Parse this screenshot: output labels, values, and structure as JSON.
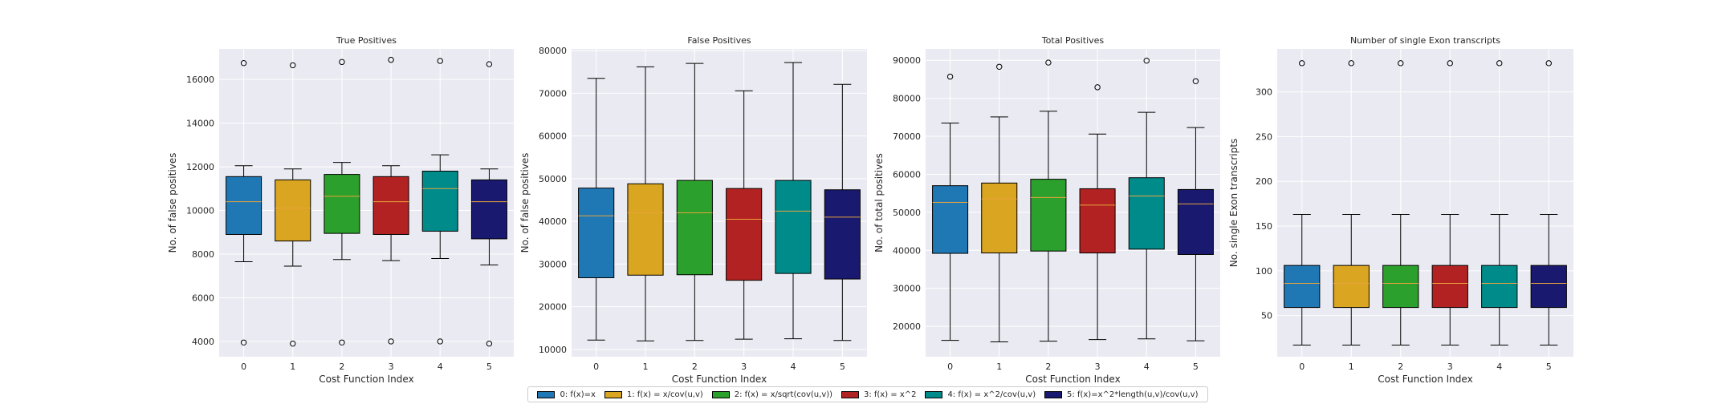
{
  "chart_data": [
    {
      "type": "box",
      "title": "True Positives",
      "xlabel": "Cost Function Index",
      "ylabel": "No. of false positives",
      "categories": [
        "0",
        "1",
        "2",
        "3",
        "4",
        "5"
      ],
      "ylim": [
        3300,
        17400
      ],
      "yticks": [
        4000,
        6000,
        8000,
        10000,
        12000,
        14000,
        16000
      ],
      "boxes": [
        {
          "whislo": 7650,
          "q1": 8900,
          "med": 10400,
          "q3": 11550,
          "whishi": 12050,
          "fliers": [
            3950,
            16750
          ]
        },
        {
          "whislo": 7450,
          "q1": 8600,
          "med": 10100,
          "q3": 11400,
          "whishi": 11900,
          "fliers": [
            3900,
            16650
          ]
        },
        {
          "whislo": 7750,
          "q1": 8950,
          "med": 10650,
          "q3": 11650,
          "whishi": 12200,
          "fliers": [
            3950,
            16800
          ]
        },
        {
          "whislo": 7700,
          "q1": 8900,
          "med": 10400,
          "q3": 11550,
          "whishi": 12050,
          "fliers": [
            4000,
            16900
          ]
        },
        {
          "whislo": 7800,
          "q1": 9050,
          "med": 11000,
          "q3": 11800,
          "whishi": 12550,
          "fliers": [
            4000,
            16850
          ]
        },
        {
          "whislo": 7500,
          "q1": 8700,
          "med": 10400,
          "q3": 11400,
          "whishi": 11900,
          "fliers": [
            3900,
            16700
          ]
        }
      ]
    },
    {
      "type": "box",
      "title": "False Positives",
      "xlabel": "Cost Function Index",
      "ylabel": "No. of false positives",
      "categories": [
        "0",
        "1",
        "2",
        "3",
        "4",
        "5"
      ],
      "ylim": [
        8300,
        80400
      ],
      "yticks": [
        10000,
        20000,
        30000,
        40000,
        50000,
        60000,
        70000,
        80000
      ],
      "boxes": [
        {
          "whislo": 12200,
          "q1": 26800,
          "med": 41300,
          "q3": 47800,
          "whishi": 73500,
          "fliers": []
        },
        {
          "whislo": 12000,
          "q1": 27400,
          "med": 42000,
          "q3": 48800,
          "whishi": 76200,
          "fliers": []
        },
        {
          "whislo": 12100,
          "q1": 27500,
          "med": 42000,
          "q3": 49600,
          "whishi": 77000,
          "fliers": []
        },
        {
          "whislo": 12400,
          "q1": 26200,
          "med": 40500,
          "q3": 47700,
          "whishi": 70600,
          "fliers": []
        },
        {
          "whislo": 12500,
          "q1": 27800,
          "med": 42400,
          "q3": 49600,
          "whishi": 77200,
          "fliers": []
        },
        {
          "whislo": 12100,
          "q1": 26500,
          "med": 41000,
          "q3": 47400,
          "whishi": 72100,
          "fliers": []
        }
      ]
    },
    {
      "type": "box",
      "title": "Total Positives",
      "xlabel": "Cost Function Index",
      "ylabel": "No. of total positives",
      "categories": [
        "0",
        "1",
        "2",
        "3",
        "4",
        "5"
      ],
      "ylim": [
        12000,
        93000
      ],
      "yticks": [
        20000,
        30000,
        40000,
        50000,
        60000,
        70000,
        80000,
        90000
      ],
      "boxes": [
        {
          "whislo": 16300,
          "q1": 39200,
          "med": 52600,
          "q3": 57000,
          "whishi": 73500,
          "fliers": [
            85700
          ]
        },
        {
          "whislo": 15900,
          "q1": 39300,
          "med": 53500,
          "q3": 57700,
          "whishi": 75100,
          "fliers": [
            88300
          ]
        },
        {
          "whislo": 16100,
          "q1": 39800,
          "med": 53900,
          "q3": 58700,
          "whishi": 76600,
          "fliers": [
            89400
          ]
        },
        {
          "whislo": 16500,
          "q1": 39300,
          "med": 51900,
          "q3": 56200,
          "whishi": 70600,
          "fliers": [
            82900
          ]
        },
        {
          "whislo": 16700,
          "q1": 40300,
          "med": 54300,
          "q3": 59100,
          "whishi": 76300,
          "fliers": [
            89900
          ]
        },
        {
          "whislo": 16200,
          "q1": 38900,
          "med": 52200,
          "q3": 56000,
          "whishi": 72300,
          "fliers": [
            84500
          ]
        }
      ]
    },
    {
      "type": "box",
      "title": "Number of single Exon transcripts",
      "xlabel": "Cost Function Index",
      "ylabel": "No. single Exon transcripts",
      "categories": [
        "0",
        "1",
        "2",
        "3",
        "4",
        "5"
      ],
      "ylim": [
        4,
        348
      ],
      "yticks": [
        50,
        100,
        150,
        200,
        250,
        300
      ],
      "boxes": [
        {
          "whislo": 17,
          "q1": 59,
          "med": 86,
          "q3": 106,
          "whishi": 163,
          "fliers": [
            332
          ]
        },
        {
          "whislo": 17,
          "q1": 59,
          "med": 86,
          "q3": 106,
          "whishi": 163,
          "fliers": [
            332
          ]
        },
        {
          "whislo": 17,
          "q1": 59,
          "med": 86,
          "q3": 106,
          "whishi": 163,
          "fliers": [
            332
          ]
        },
        {
          "whislo": 17,
          "q1": 59,
          "med": 86,
          "q3": 106,
          "whishi": 163,
          "fliers": [
            332
          ]
        },
        {
          "whislo": 17,
          "q1": 59,
          "med": 86,
          "q3": 106,
          "whishi": 163,
          "fliers": [
            332
          ]
        },
        {
          "whislo": 17,
          "q1": 59,
          "med": 86,
          "q3": 106,
          "whishi": 163,
          "fliers": [
            332
          ]
        }
      ]
    }
  ],
  "legend": {
    "placement": "bottom-center",
    "items": [
      {
        "label": "0: f(x)=x",
        "color": "#1f77b4"
      },
      {
        "label": "1: f(x) = x/cov(u,v)",
        "color": "#daa520"
      },
      {
        "label": "2: f(x) = x/sqrt(cov(u,v))",
        "color": "#2ca02c"
      },
      {
        "label": "3: f(x) = x^2",
        "color": "#b22222"
      },
      {
        "label": "4: f(x) = x^2/cov(u,v)",
        "color": "#008b8b"
      },
      {
        "label": "5: f(x)=x^2*length(u,v)/cov(u,v)",
        "color": "#191970"
      }
    ]
  },
  "style": {
    "axes_background": "#eaeaf2",
    "grid_color": "#ffffff",
    "median_color": "#e8a33d",
    "grid": true
  }
}
